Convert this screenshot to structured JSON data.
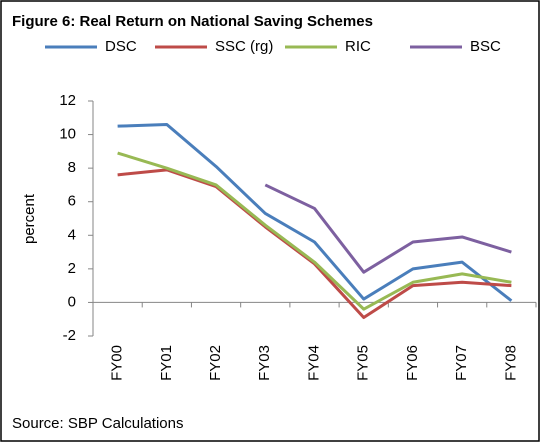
{
  "chart_data": {
    "type": "line",
    "title": "Figure 6: Real Return on National Saving Schemes",
    "ylabel": "percent",
    "source": "Source:  SBP Calculations",
    "categories": [
      "FY00",
      "FY01",
      "FY02",
      "FY03",
      "FY04",
      "FY05",
      "FY06",
      "FY07",
      "FY08"
    ],
    "series": [
      {
        "name": "DSC",
        "color": "#4a7ebb",
        "values": [
          10.5,
          10.6,
          8.1,
          5.3,
          3.6,
          0.2,
          2.0,
          2.4,
          0.1
        ]
      },
      {
        "name": "SSC (rg)",
        "color": "#be4b48",
        "values": [
          7.6,
          7.9,
          6.9,
          4.5,
          2.3,
          -0.9,
          1.0,
          1.2,
          1.0
        ]
      },
      {
        "name": "RIC",
        "color": "#98b954",
        "values": [
          8.9,
          8.0,
          7.0,
          4.6,
          2.4,
          -0.4,
          1.2,
          1.7,
          1.2
        ]
      },
      {
        "name": "BSC",
        "color": "#7d60a0",
        "values": [
          null,
          null,
          null,
          7.0,
          5.6,
          1.8,
          3.6,
          3.9,
          3.0
        ]
      }
    ],
    "ylim": [
      -2,
      12
    ],
    "yticks": [
      -2,
      0,
      2,
      4,
      6,
      8,
      10,
      12
    ],
    "grid": false,
    "legend": "top"
  }
}
